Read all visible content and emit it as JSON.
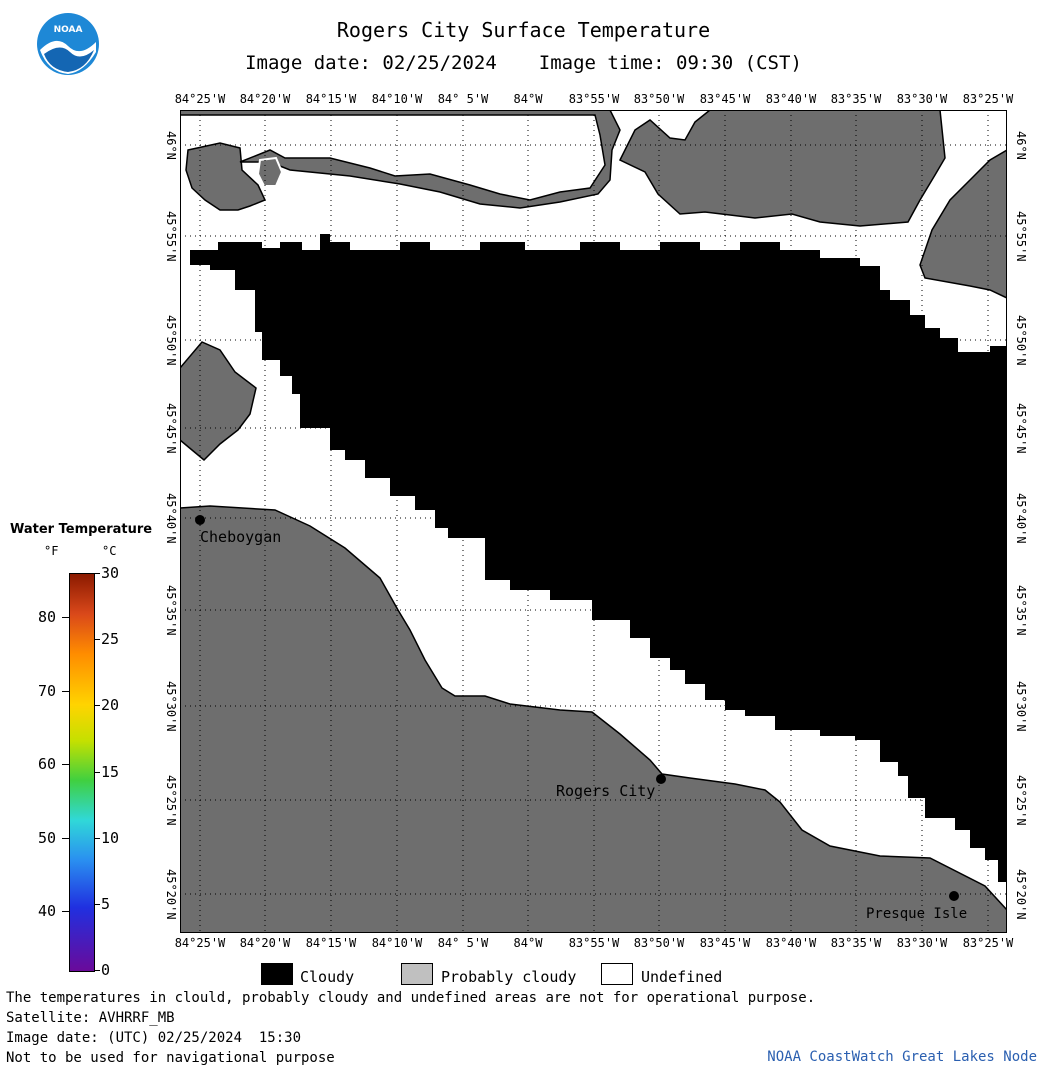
{
  "header": {
    "title": "Rogers City Surface Temperature",
    "image_date_label": "Image date: 02/25/2024",
    "image_time_label": "Image time: 09:30 (CST)"
  },
  "logo": {
    "text": "NOAA"
  },
  "map": {
    "longitude_labels": [
      "84°25'W",
      "84°20'W",
      "84°15'W",
      "84°10'W",
      "84° 5'W",
      "84°W",
      "83°55'W",
      "83°50'W",
      "83°45'W",
      "83°40'W",
      "83°35'W",
      "83°30'W",
      "83°25'W"
    ],
    "latitude_labels": [
      "46°N",
      "45°55'N",
      "45°50'N",
      "45°45'N",
      "45°40'N",
      "45°35'N",
      "45°30'N",
      "45°25'N",
      "45°20'N"
    ],
    "places": [
      {
        "name": "Cheboygan"
      },
      {
        "name": "Rogers City"
      },
      {
        "name": "Presque Isle"
      }
    ],
    "colors": {
      "land": "#6e6e6e",
      "cloud": "#000000",
      "undefined": "#ffffff"
    }
  },
  "legend": {
    "title": "Water Temperature",
    "unit_f": "°F",
    "unit_c": "°C",
    "f_ticks": [
      "80",
      "70",
      "60",
      "50",
      "40"
    ],
    "c_ticks": [
      "30",
      "25",
      "20",
      "15",
      "10",
      "5",
      "0"
    ]
  },
  "key": {
    "cloudy": "Cloudy",
    "probably_cloudy": "Probably cloudy",
    "undefined": "Undefined"
  },
  "footer": {
    "line1": "The temperatures in clould, probably cloudy and undefined areas are not for operational purpose.",
    "line2": "Satellite: AVHRRF_MB",
    "line3": "Image date: (UTC) 02/25/2024  15:30",
    "line4": "Not to be used for navigational purpose",
    "credit": "NOAA CoastWatch Great Lakes Node"
  }
}
